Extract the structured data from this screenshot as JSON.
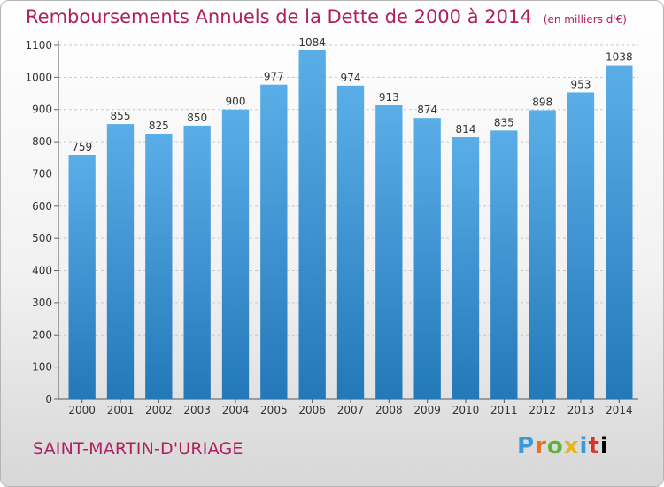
{
  "title": "Remboursements Annuels de la Dette de 2000 à 2014",
  "unit_note": "(en milliers d'€)",
  "commune": "SAINT-MARTIN-D'URIAGE",
  "logo": [
    "P",
    "r",
    "o",
    "x",
    "i",
    "t",
    "i"
  ],
  "colors": {
    "title": "#b0205e",
    "bar_top": "#5aaee8",
    "bar_bottom": "#2378b8",
    "grid": "#c8c8c8"
  },
  "chart_data": {
    "type": "bar",
    "categories": [
      "2000",
      "2001",
      "2002",
      "2003",
      "2004",
      "2005",
      "2006",
      "2007",
      "2008",
      "2009",
      "2010",
      "2011",
      "2012",
      "2013",
      "2014"
    ],
    "values": [
      759,
      855,
      825,
      850,
      900,
      977,
      1084,
      974,
      913,
      874,
      814,
      835,
      898,
      953,
      1038
    ],
    "ylim": [
      0,
      1100
    ],
    "yticks": [
      0,
      100,
      200,
      300,
      400,
      500,
      600,
      700,
      800,
      900,
      1000,
      1100
    ],
    "grid": true,
    "grid_style": "dashed-horizontal",
    "data_labels": true
  }
}
